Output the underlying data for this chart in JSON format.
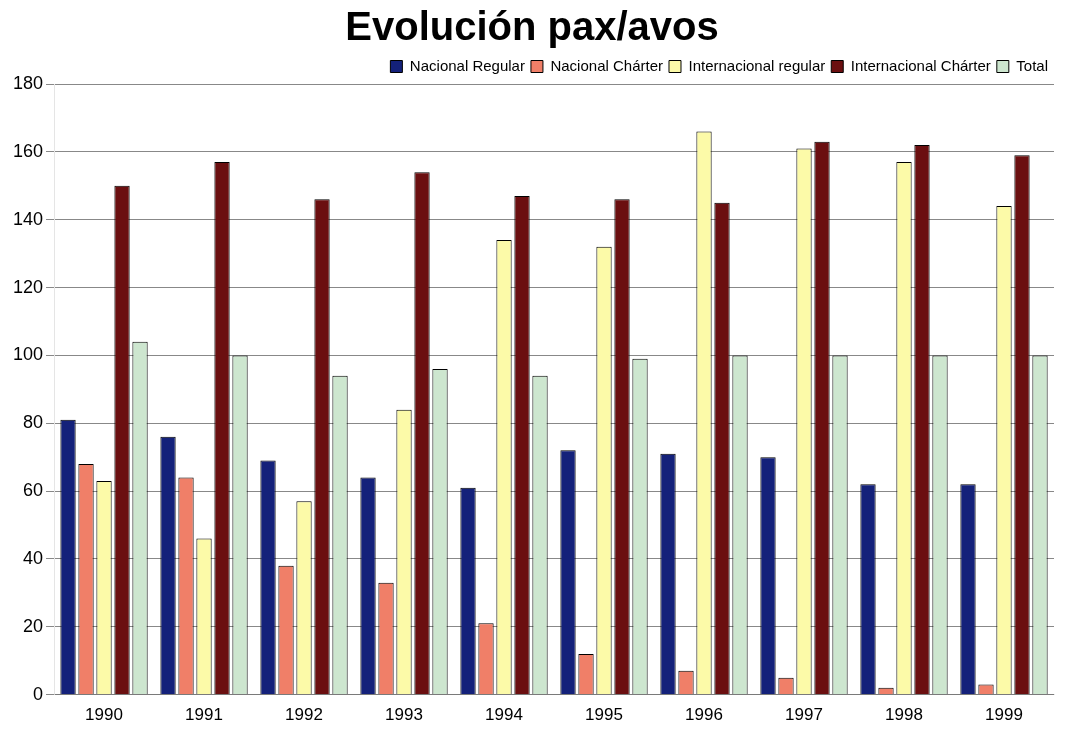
{
  "chart_data": {
    "type": "bar",
    "title": "Evolución pax/avos",
    "categories": [
      "1990",
      "1991",
      "1992",
      "1993",
      "1994",
      "1995",
      "1996",
      "1997",
      "1998",
      "1999"
    ],
    "series": [
      {
        "name": "Nacional Regular",
        "color": "#14217a",
        "values": [
          81,
          76,
          69,
          64,
          61,
          72,
          71,
          70,
          62,
          62
        ]
      },
      {
        "name": "Nacional Chárter",
        "color": "#f07f68",
        "values": [
          68,
          64,
          38,
          33,
          21,
          12,
          7,
          5,
          2,
          3
        ]
      },
      {
        "name": "Internacional regular",
        "color": "#fcfaa8",
        "values": [
          63,
          46,
          57,
          84,
          134,
          132,
          166,
          161,
          157,
          144
        ]
      },
      {
        "name": "Internacional Chárter",
        "color": "#6b0f10",
        "values": [
          150,
          157,
          146,
          154,
          147,
          146,
          145,
          163,
          162,
          159
        ]
      },
      {
        "name": "Total",
        "color": "#cde6cf",
        "values": [
          104,
          100,
          94,
          96,
          94,
          99,
          100,
          100,
          100,
          100
        ]
      }
    ],
    "ylim": [
      0,
      180
    ],
    "yticks": [
      0,
      20,
      40,
      60,
      80,
      100,
      120,
      140,
      160,
      180
    ],
    "grid": "y",
    "legend": "top right"
  }
}
